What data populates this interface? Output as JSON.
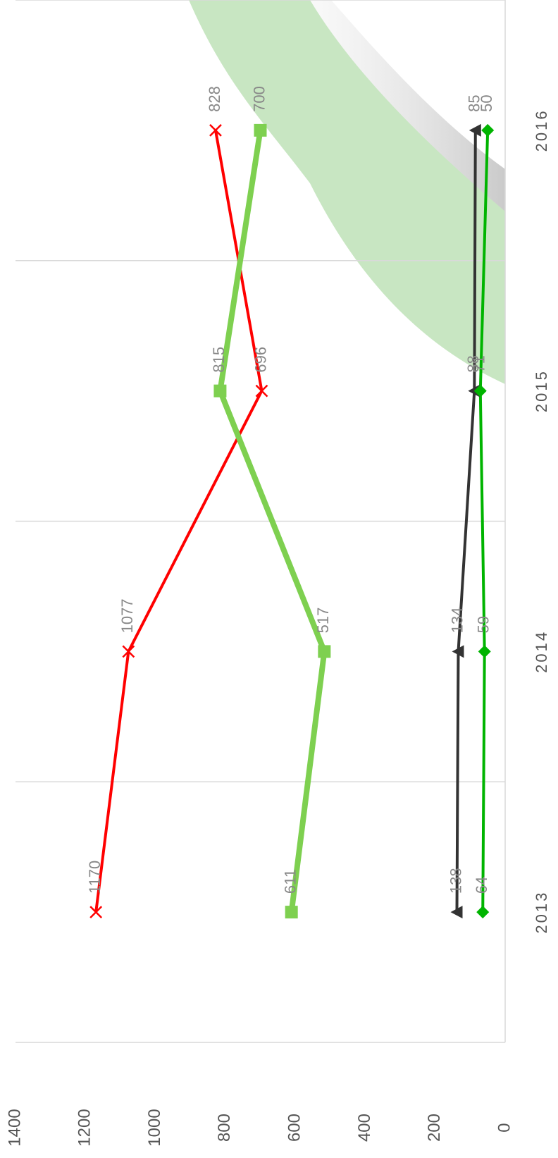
{
  "chart_data": {
    "type": "line",
    "categories": [
      "2013",
      "2014",
      "2015",
      "2016"
    ],
    "series": [
      {
        "color": "#ff0000",
        "marker": "x",
        "values": [
          1170,
          1077,
          696,
          828
        ]
      },
      {
        "color": "#7ed050",
        "marker": "square",
        "values": [
          611,
          517,
          815,
          700
        ]
      },
      {
        "color": "#333333",
        "marker": "triangle",
        "values": [
          138,
          134,
          88,
          85
        ]
      },
      {
        "color": "#00b400",
        "marker": "diamond",
        "values": [
          64,
          59,
          71,
          50
        ]
      }
    ],
    "ylim": [
      0,
      1400
    ],
    "yticks": [
      0,
      200,
      400,
      600,
      800,
      1000,
      1200,
      1400
    ],
    "grid": true
  }
}
